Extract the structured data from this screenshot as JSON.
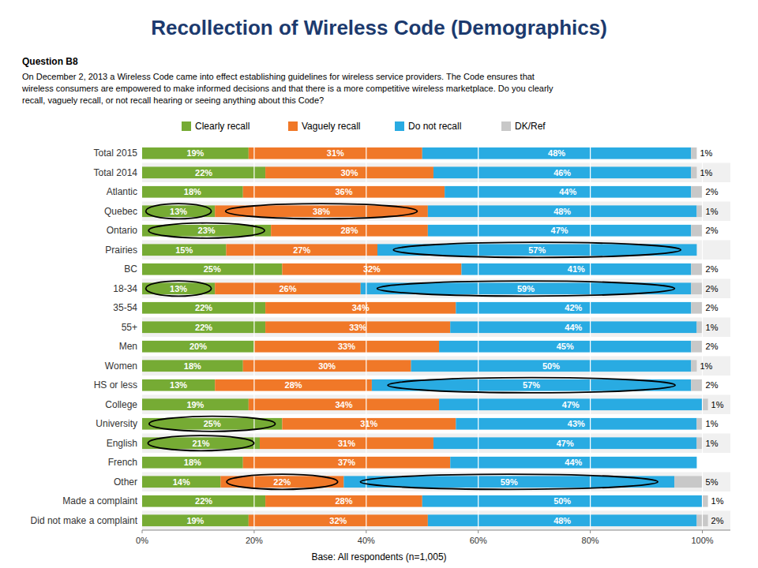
{
  "chart_data": {
    "type": "bar",
    "orientation": "horizontal",
    "stacked": true,
    "data_labels": true,
    "grid": true,
    "legend": "top",
    "title": "Recollection of Wireless Code (Demographics)",
    "annotations": [
      "Question B8",
      "On December 2, 2013 a Wireless Code came into effect establishing guidelines for wireless service providers. The Code ensures that\nwireless consumers are empowered to make informed decisions and that there is a more competitive wireless marketplace. Do you clearly\nrecall, vaguely recall, or not recall hearing or seeing anything about this Code?",
      "Base: All respondents (n=1,005)"
    ],
    "categories": [
      "Total 2015",
      "Total 2014",
      "Atlantic",
      "Quebec",
      "Ontario",
      "Prairies",
      "BC",
      "18-34",
      "35-54",
      "55+",
      "Men",
      "Women",
      "HS or less",
      "College",
      "University",
      "English",
      "French",
      "Other",
      "Made a complaint",
      "Did not make a complaint"
    ],
    "xlim": [
      0,
      105
    ],
    "xticks": [
      {
        "value": 0,
        "label": "0%"
      },
      {
        "value": 20,
        "label": "20%"
      },
      {
        "value": 40,
        "label": "40%"
      },
      {
        "value": 60,
        "label": "60%"
      },
      {
        "value": 80,
        "label": "80%"
      },
      {
        "value": 100,
        "label": "100%"
      }
    ],
    "series": [
      {
        "name": "Clearly recall",
        "color": "#76AB34",
        "values": [
          19,
          22,
          18,
          13,
          23,
          15,
          25,
          13,
          22,
          22,
          20,
          18,
          13,
          19,
          25,
          21,
          18,
          14,
          22,
          19
        ],
        "value_labels": [
          "19%",
          "22%",
          "18%",
          "13%",
          "23%",
          "15%",
          "25%",
          "13%",
          "22%",
          "22%",
          "20%",
          "18%",
          "13%",
          "19%",
          "25%",
          "21%",
          "18%",
          "14%",
          "22%",
          "19%"
        ]
      },
      {
        "name": "Vaguely recall",
        "color": "#F07828",
        "values": [
          31,
          30,
          36,
          38,
          28,
          27,
          32,
          26,
          34,
          33,
          33,
          30,
          28,
          34,
          31,
          31,
          37,
          22,
          28,
          32
        ],
        "value_labels": [
          "31%",
          "30%",
          "36%",
          "38%",
          "28%",
          "27%",
          "32%",
          "26%",
          "34%",
          "33%",
          "33%",
          "30%",
          "28%",
          "34%",
          "31%",
          "31%",
          "37%",
          "22%",
          "28%",
          "32%"
        ]
      },
      {
        "name": "Do not recall",
        "color": "#29ABE2",
        "values": [
          48,
          46,
          44,
          48,
          47,
          57,
          41,
          59,
          42,
          44,
          45,
          50,
          57,
          47,
          43,
          47,
          44,
          59,
          50,
          48
        ],
        "value_labels": [
          "48%",
          "46%",
          "44%",
          "48%",
          "47%",
          "57%",
          "41%",
          "59%",
          "42%",
          "44%",
          "45%",
          "50%",
          "57%",
          "47%",
          "43%",
          "47%",
          "44%",
          "59%",
          "50%",
          "48%"
        ]
      },
      {
        "name": "DK/Ref",
        "color": "#C8C8C8",
        "values": [
          1,
          1,
          2,
          1,
          2,
          0,
          2,
          2,
          2,
          1,
          2,
          1,
          2,
          1,
          1,
          1,
          0,
          5,
          1,
          2
        ],
        "value_labels": [
          "1%",
          "1%",
          "2%",
          "1%",
          "2%",
          null,
          "2%",
          "2%",
          "2%",
          "1%",
          "2%",
          "1%",
          "2%",
          "1%",
          "1%",
          "1%",
          null,
          "5%",
          "1%",
          "2%"
        ]
      }
    ],
    "circled": [
      {
        "category": "Quebec",
        "series": "Clearly recall"
      },
      {
        "category": "Quebec",
        "series": "Vaguely recall"
      },
      {
        "category": "Ontario",
        "series": "Clearly recall"
      },
      {
        "category": "Prairies",
        "series": "Do not recall"
      },
      {
        "category": "18-34",
        "series": "Clearly recall"
      },
      {
        "category": "18-34",
        "series": "Do not recall"
      },
      {
        "category": "HS or less",
        "series": "Do not recall"
      },
      {
        "category": "University",
        "series": "Clearly recall"
      },
      {
        "category": "English",
        "series": "Clearly recall"
      },
      {
        "category": "Other",
        "series": "Vaguely recall"
      },
      {
        "category": "Other",
        "series": "Do not recall"
      }
    ]
  }
}
